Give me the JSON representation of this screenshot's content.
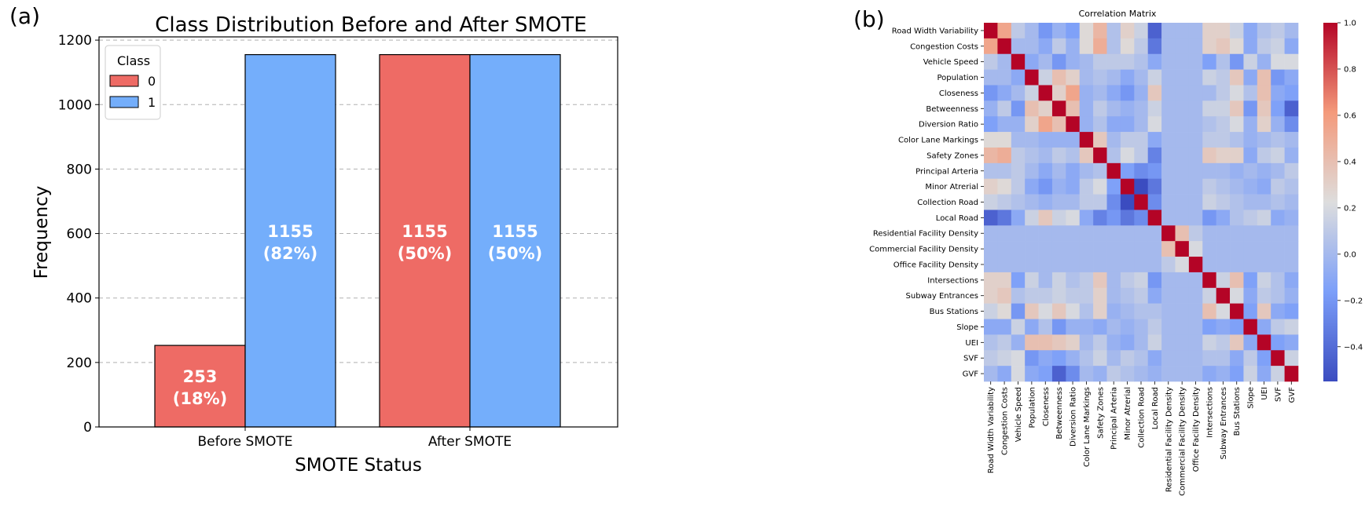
{
  "panels": {
    "a_label": "(a)",
    "b_label": "(b)"
  },
  "chart_data": [
    {
      "type": "bar",
      "title": "Class Distribution Before and After SMOTE",
      "xlabel": "SMOTE Status",
      "ylabel": "Frequency",
      "categories": [
        "Before SMOTE",
        "After SMOTE"
      ],
      "series": [
        {
          "name": "0",
          "values": [
            253,
            1155
          ],
          "labels": [
            "253\n(18%)",
            "1155\n(50%)"
          ],
          "color": "#EE6B65"
        },
        {
          "name": "1",
          "values": [
            1155,
            1155
          ],
          "labels": [
            "1155\n(82%)",
            "1155\n(50%)"
          ],
          "color": "#74AEFB"
        }
      ],
      "ylim": [
        0,
        1210
      ],
      "yticks": [
        0,
        200,
        400,
        600,
        800,
        1000,
        1200
      ],
      "grid": "horizontal-dashed",
      "legend_title": "Class",
      "legend_position": "top-left"
    },
    {
      "type": "heatmap",
      "title": "Correlation Matrix",
      "variables": [
        "Road Width Variability",
        "Congestion Costs",
        "Vehicle Speed",
        "Population",
        "Closeness",
        "Betweenness",
        "Diversion Ratio",
        "Color Lane Markings",
        "Safety Zones",
        "Principal Arteria",
        "Minor Atrerial",
        "Collection Road",
        "Local Road",
        "Residential Facility Density",
        "Commercial Facility Density",
        "Office Facility Density",
        "Intersections",
        "Subway Entrances",
        "Bus Stations",
        "Slope",
        "UEI",
        "SVF",
        "GVF"
      ],
      "values": [
        [
          1.0,
          0.55,
          0.1,
          0.0,
          -0.2,
          -0.05,
          -0.15,
          0.25,
          0.45,
          0.05,
          0.3,
          0.15,
          -0.45,
          0.0,
          0.0,
          0.0,
          0.3,
          0.3,
          0.15,
          -0.1,
          0.05,
          0.1,
          0.0
        ],
        [
          0.55,
          1.0,
          0.0,
          0.0,
          -0.1,
          0.1,
          -0.05,
          0.25,
          0.5,
          0.05,
          0.25,
          0.1,
          -0.35,
          0.0,
          0.0,
          0.0,
          0.3,
          0.35,
          0.25,
          -0.1,
          0.1,
          0.15,
          -0.1
        ],
        [
          0.1,
          0.0,
          1.0,
          -0.1,
          0.0,
          -0.2,
          -0.05,
          0.0,
          0.1,
          0.1,
          0.1,
          0.05,
          -0.1,
          0.0,
          0.0,
          0.0,
          -0.15,
          0.05,
          -0.2,
          0.15,
          -0.05,
          0.2,
          0.2
        ],
        [
          0.0,
          0.0,
          -0.1,
          1.0,
          0.15,
          0.4,
          0.3,
          0.0,
          0.05,
          0.0,
          -0.1,
          0.0,
          0.15,
          0.0,
          0.0,
          0.0,
          0.15,
          0.1,
          0.35,
          -0.1,
          0.4,
          -0.2,
          -0.1
        ],
        [
          -0.2,
          -0.1,
          0.0,
          0.15,
          1.0,
          0.3,
          0.55,
          -0.05,
          0.0,
          -0.1,
          -0.2,
          -0.05,
          0.35,
          0.0,
          0.0,
          0.0,
          0.0,
          0.1,
          0.2,
          0.05,
          0.4,
          -0.1,
          -0.15
        ],
        [
          -0.05,
          0.1,
          -0.2,
          0.4,
          0.3,
          1.0,
          0.4,
          -0.05,
          0.1,
          0.0,
          -0.05,
          0.0,
          0.15,
          0.0,
          0.0,
          0.0,
          0.15,
          0.15,
          0.35,
          -0.2,
          0.35,
          -0.15,
          -0.45
        ],
        [
          -0.15,
          -0.05,
          -0.05,
          0.3,
          0.55,
          0.4,
          1.0,
          -0.05,
          0.05,
          -0.1,
          -0.1,
          0.0,
          0.2,
          0.0,
          0.0,
          0.0,
          0.05,
          0.1,
          0.2,
          -0.05,
          0.3,
          -0.05,
          -0.25
        ],
        [
          0.25,
          0.25,
          0.0,
          0.0,
          -0.05,
          -0.05,
          -0.05,
          1.0,
          0.35,
          0.0,
          0.1,
          0.1,
          -0.1,
          0.0,
          0.0,
          0.0,
          0.1,
          0.1,
          0.05,
          -0.05,
          0.0,
          0.05,
          0.0
        ],
        [
          0.45,
          0.5,
          0.1,
          0.05,
          0.0,
          0.1,
          0.05,
          0.35,
          1.0,
          0.05,
          0.2,
          0.1,
          -0.3,
          0.0,
          0.0,
          0.0,
          0.35,
          0.3,
          0.3,
          -0.1,
          0.1,
          0.15,
          -0.05
        ],
        [
          0.05,
          0.05,
          0.1,
          0.0,
          -0.1,
          0.0,
          -0.1,
          0.0,
          0.05,
          1.0,
          -0.15,
          -0.25,
          -0.2,
          0.0,
          0.0,
          0.0,
          0.0,
          0.0,
          -0.05,
          0.0,
          -0.05,
          0.0,
          0.1
        ],
        [
          0.3,
          0.25,
          0.1,
          -0.1,
          -0.2,
          -0.05,
          -0.1,
          0.1,
          0.2,
          -0.15,
          1.0,
          -0.55,
          -0.35,
          0.0,
          0.0,
          0.0,
          0.1,
          0.05,
          0.0,
          -0.05,
          -0.1,
          0.1,
          0.05
        ],
        [
          0.15,
          0.1,
          0.05,
          0.0,
          -0.05,
          0.0,
          0.0,
          0.1,
          0.1,
          -0.25,
          -0.55,
          1.0,
          -0.25,
          0.0,
          0.0,
          0.0,
          0.15,
          0.1,
          0.05,
          0.0,
          0.0,
          0.05,
          0.0
        ],
        [
          -0.45,
          -0.35,
          -0.1,
          0.15,
          0.35,
          0.15,
          0.2,
          -0.1,
          -0.3,
          -0.2,
          -0.35,
          -0.25,
          1.0,
          0.0,
          0.0,
          0.0,
          -0.2,
          -0.1,
          0.05,
          0.1,
          0.15,
          -0.1,
          -0.05
        ],
        [
          0.0,
          0.0,
          0.0,
          0.0,
          0.0,
          0.0,
          0.0,
          0.0,
          0.0,
          0.0,
          0.0,
          0.0,
          0.0,
          1.0,
          0.4,
          0.1,
          0.0,
          0.0,
          0.0,
          0.0,
          0.0,
          0.0,
          0.0
        ],
        [
          0.0,
          0.0,
          0.0,
          0.0,
          0.0,
          0.0,
          0.0,
          0.0,
          0.0,
          0.0,
          0.0,
          0.0,
          0.0,
          0.4,
          1.0,
          0.2,
          0.0,
          0.0,
          0.0,
          0.0,
          0.0,
          0.0,
          0.0
        ],
        [
          0.0,
          0.0,
          0.0,
          0.0,
          0.0,
          0.0,
          0.0,
          0.0,
          0.0,
          0.0,
          0.0,
          0.0,
          0.0,
          0.1,
          0.2,
          1.0,
          0.0,
          0.0,
          0.0,
          0.0,
          0.0,
          0.0,
          0.0
        ],
        [
          0.3,
          0.3,
          -0.15,
          0.15,
          0.0,
          0.15,
          0.05,
          0.1,
          0.35,
          0.0,
          0.1,
          0.15,
          -0.2,
          0.0,
          0.0,
          0.0,
          1.0,
          0.15,
          0.4,
          -0.15,
          0.15,
          0.05,
          -0.1
        ],
        [
          0.3,
          0.35,
          0.05,
          0.1,
          0.1,
          0.15,
          0.1,
          0.1,
          0.3,
          0.0,
          0.05,
          0.1,
          -0.1,
          0.0,
          0.0,
          0.0,
          0.15,
          1.0,
          0.2,
          -0.1,
          0.1,
          0.05,
          -0.05
        ],
        [
          0.15,
          0.25,
          -0.2,
          0.35,
          0.2,
          0.35,
          0.2,
          0.05,
          0.3,
          -0.05,
          0.0,
          0.05,
          0.05,
          0.0,
          0.0,
          0.0,
          0.4,
          0.2,
          1.0,
          -0.15,
          0.35,
          -0.1,
          -0.15
        ],
        [
          -0.1,
          -0.1,
          0.15,
          -0.1,
          0.05,
          -0.2,
          -0.05,
          -0.05,
          -0.1,
          0.0,
          -0.05,
          0.0,
          0.1,
          0.0,
          0.0,
          0.0,
          -0.15,
          -0.1,
          -0.15,
          1.0,
          -0.1,
          0.1,
          0.15
        ],
        [
          0.05,
          0.1,
          -0.05,
          0.4,
          0.4,
          0.35,
          0.3,
          0.0,
          0.1,
          -0.05,
          -0.1,
          0.0,
          0.15,
          0.0,
          0.0,
          0.0,
          0.15,
          0.1,
          0.35,
          -0.1,
          1.0,
          -0.15,
          -0.1
        ],
        [
          0.1,
          0.15,
          0.2,
          -0.2,
          -0.1,
          -0.15,
          -0.05,
          0.05,
          0.15,
          0.0,
          0.1,
          0.05,
          -0.1,
          0.0,
          0.0,
          0.0,
          0.05,
          0.05,
          -0.1,
          0.1,
          -0.15,
          1.0,
          0.15
        ],
        [
          0.0,
          -0.1,
          0.2,
          -0.1,
          -0.15,
          -0.45,
          -0.25,
          0.0,
          -0.05,
          0.1,
          0.05,
          0.0,
          -0.05,
          0.0,
          0.0,
          0.0,
          -0.1,
          -0.05,
          -0.15,
          0.15,
          -0.1,
          0.15,
          1.0
        ]
      ],
      "colorbar_range": [
        -0.55,
        1.0
      ],
      "colorbar_ticks": [
        1.0,
        0.8,
        0.6,
        0.4,
        0.2,
        0.0,
        -0.2,
        -0.4
      ],
      "colormap": "coolwarm"
    }
  ]
}
